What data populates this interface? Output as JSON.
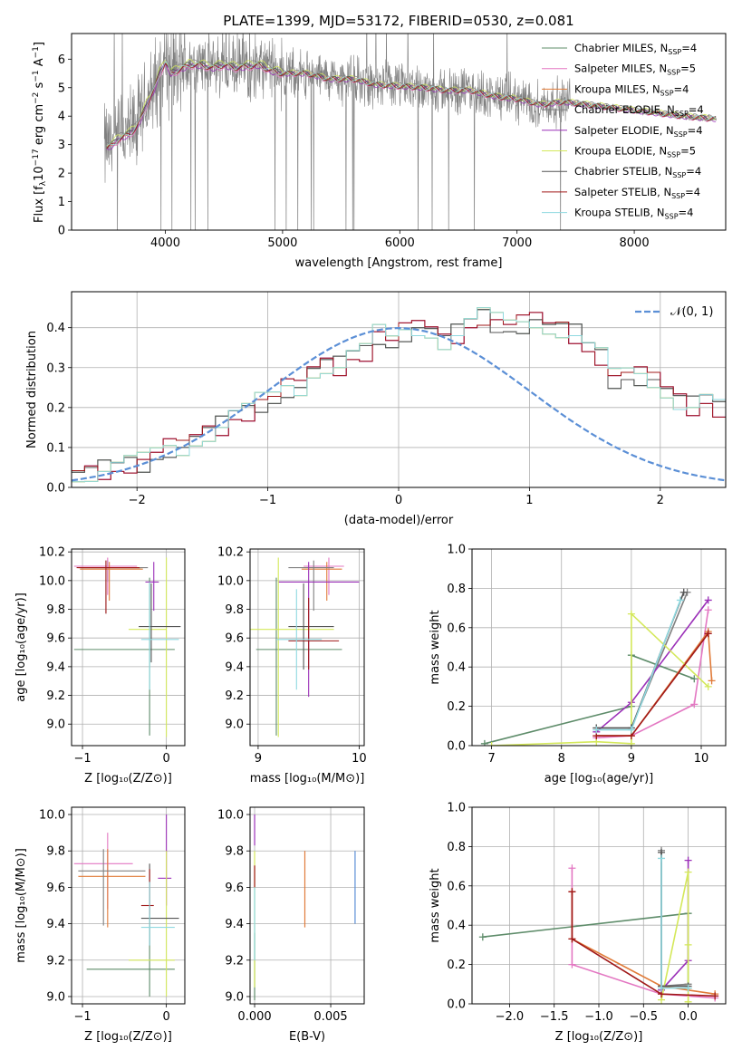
{
  "chart_data": [
    {
      "id": "spectrum",
      "type": "line",
      "title": "PLATE=1399, MJD=53172, FIBERID=0530, z=0.081",
      "xlabel": "wavelength [Angstrom, rest frame]",
      "ylabel": "Flux [fλ10^-17 erg cm^-2 s^-1 A^-1]",
      "xlim": [
        3200,
        8780
      ],
      "ylim": [
        0,
        6.9
      ],
      "xticks": [
        4000,
        5000,
        6000,
        7000,
        8000
      ],
      "yticks": [
        0,
        1,
        2,
        3,
        4,
        5,
        6
      ],
      "grid": false,
      "legend_position": "top-right",
      "legend": [
        {
          "name": "Chabrier MILES",
          "nssp": "4",
          "color": "#5e8c6a"
        },
        {
          "name": "Salpeter MILES",
          "nssp": "5",
          "color": "#e377c2"
        },
        {
          "name": "Kroupa MILES",
          "nssp": "4",
          "color": "#e07b39"
        },
        {
          "name": "Chabrier ELODIE",
          "nssp": "4",
          "color": "#808080"
        },
        {
          "name": "Salpeter ELODIE",
          "nssp": "4",
          "color": "#9b30b8"
        },
        {
          "name": "Kroupa ELODIE",
          "nssp": "5",
          "color": "#d4e85a"
        },
        {
          "name": "Chabrier STELIB",
          "nssp": "4",
          "color": "#555555"
        },
        {
          "name": "Salpeter STELIB",
          "nssp": "4",
          "color": "#a01818"
        },
        {
          "name": "Kroupa STELIB",
          "nssp": "4",
          "color": "#8fd9e0"
        }
      ],
      "data_color": "#808080",
      "model_color": "#6ccfd8",
      "model_curve": {
        "x": [
          3500,
          3550,
          3600,
          3650,
          3700,
          3750,
          3800,
          3850,
          3900,
          3950,
          4000,
          4050,
          4100,
          4200,
          4300,
          4400,
          4500,
          4600,
          4700,
          4800,
          4900,
          5000,
          5200,
          5400,
          5600,
          5800,
          6000,
          6200,
          6400,
          6600,
          6800,
          7000,
          7200,
          7400,
          7600,
          7800,
          8000,
          8200,
          8400,
          8700
        ],
        "y": [
          2.9,
          3.0,
          3.2,
          3.3,
          3.4,
          3.6,
          4.0,
          4.5,
          4.9,
          5.5,
          5.9,
          5.5,
          5.6,
          5.8,
          5.8,
          5.7,
          5.8,
          5.7,
          5.75,
          5.8,
          5.6,
          5.5,
          5.5,
          5.3,
          5.3,
          5.1,
          5.05,
          5.0,
          4.9,
          4.9,
          4.7,
          4.6,
          4.4,
          4.5,
          4.4,
          4.3,
          4.2,
          4.1,
          4.0,
          3.9
        ]
      }
    },
    {
      "id": "residuals",
      "type": "step",
      "xlabel": "(data-model)/error",
      "ylabel": "Normed distribution",
      "xlim": [
        -2.5,
        2.5
      ],
      "ylim": [
        0,
        0.49
      ],
      "xticks": [
        -2,
        -1,
        0,
        1,
        2
      ],
      "yticks": [
        0.0,
        0.1,
        0.2,
        0.3,
        0.4
      ],
      "grid": true,
      "legend_position": "top-right",
      "legend": [
        {
          "name": "𝒩(0, 1)",
          "color": "#5b8fd6"
        }
      ],
      "bin_width": 0.1,
      "base_hist": [
        0.02,
        0.03,
        0.03,
        0.04,
        0.05,
        0.06,
        0.07,
        0.08,
        0.09,
        0.1,
        0.12,
        0.13,
        0.15,
        0.18,
        0.19,
        0.22,
        0.22,
        0.24,
        0.25,
        0.29,
        0.3,
        0.3,
        0.33,
        0.34,
        0.39,
        0.36,
        0.38,
        0.4,
        0.39,
        0.36,
        0.38,
        0.41,
        0.43,
        0.42,
        0.4,
        0.4,
        0.42,
        0.4,
        0.39,
        0.38,
        0.35,
        0.33,
        0.28,
        0.28,
        0.27,
        0.27,
        0.24,
        0.21,
        0.2,
        0.22,
        0.2,
        0.16,
        0.17,
        0.14,
        0.13,
        0.12,
        0.1,
        0.09,
        0.1,
        0.09,
        0.08,
        0.07,
        0.06,
        0.06,
        0.05,
        0.05,
        0.04,
        0.03,
        0.03,
        0.03,
        0.02,
        0.02
      ],
      "bins_from": -2.6
    },
    {
      "id": "age_vs_Z",
      "type": "errorbar",
      "xlabel": "Z [log10(Z/Z⊙)]",
      "ylabel": "age  [log10(age/yr)]",
      "xlim": [
        -1.13,
        0.22
      ],
      "ylim": [
        8.85,
        10.22
      ],
      "xticks": [
        -1,
        0
      ],
      "yticks": [
        9.0,
        9.2,
        9.4,
        9.6,
        9.8,
        10.0,
        10.2
      ],
      "grid": true,
      "points": [
        {
          "c": 0,
          "x": -0.2,
          "y": 9.52,
          "xe": [
            0.9,
            0.3
          ],
          "ye": [
            0.6,
            0.5
          ]
        },
        {
          "c": 0,
          "x": -0.7,
          "y": 10.09,
          "xe": [
            0.35,
            0.4
          ],
          "ye": [
            0.1,
            0.05
          ]
        },
        {
          "c": 1,
          "x": -0.7,
          "y": 10.1,
          "xe": [
            0.4,
            0.35
          ],
          "ye": [
            0.2,
            0.06
          ]
        },
        {
          "c": 2,
          "x": -0.68,
          "y": 10.08,
          "xe": [
            0.35,
            0.4
          ],
          "ye": [
            0.22,
            0.05
          ]
        },
        {
          "c": 3,
          "x": -0.72,
          "y": 10.09,
          "xe": [
            0.3,
            0.5
          ],
          "ye": [
            0.32,
            0.05
          ]
        },
        {
          "c": 4,
          "x": -0.15,
          "y": 9.99,
          "xe": [
            0.1,
            0.06
          ],
          "ye": [
            0.2,
            0.14
          ]
        },
        {
          "c": 5,
          "x": 0.0,
          "y": 9.66,
          "xe": [
            0.45,
            0.0
          ],
          "ye": [
            0.75,
            0.5
          ]
        },
        {
          "c": 6,
          "x": -0.18,
          "y": 9.68,
          "xe": [
            0.15,
            0.35
          ],
          "ye": [
            0.25,
            0.3
          ]
        },
        {
          "c": 7,
          "x": -0.72,
          "y": 10.09,
          "xe": [
            0.35,
            0.4
          ],
          "ye": [
            0.32,
            0.05
          ]
        },
        {
          "c": 8,
          "x": -0.2,
          "y": 9.59,
          "xe": [
            0.1,
            0.35
          ],
          "ye": [
            0.35,
            0.4
          ]
        }
      ]
    },
    {
      "id": "age_vs_mass",
      "type": "errorbar",
      "xlabel": "mass [log10(M/M⊙)]",
      "ylabel": "",
      "xlim": [
        8.92,
        10.05
      ],
      "ylim": [
        8.85,
        10.22
      ],
      "xticks": [
        9,
        10
      ],
      "yticks": [
        9.0,
        9.2,
        9.4,
        9.6,
        9.8,
        10.0,
        10.2
      ],
      "grid": true,
      "points": [
        {
          "c": 0,
          "x": 9.18,
          "y": 9.52,
          "xe": [
            0.2,
            0.65
          ],
          "ye": [
            0.6,
            0.5
          ]
        },
        {
          "c": 1,
          "x": 9.7,
          "y": 10.1,
          "xe": [
            0.25,
            0.15
          ],
          "ye": [
            0.2,
            0.06
          ]
        },
        {
          "c": 2,
          "x": 9.68,
          "y": 10.08,
          "xe": [
            0.25,
            0.15
          ],
          "ye": [
            0.22,
            0.05
          ]
        },
        {
          "c": 3,
          "x": 9.55,
          "y": 10.09,
          "xe": [
            0.25,
            0.2
          ],
          "ye": [
            0.3,
            0.05
          ]
        },
        {
          "c": 4,
          "x": 9.5,
          "y": 9.99,
          "xe": [
            0.3,
            0.5
          ],
          "ye": [
            0.8,
            0.14
          ]
        },
        {
          "c": 5,
          "x": 9.2,
          "y": 9.66,
          "xe": [
            0.4,
            0.55
          ],
          "ye": [
            0.75,
            0.5
          ]
        },
        {
          "c": 6,
          "x": 9.45,
          "y": 9.68,
          "xe": [
            0.15,
            0.3
          ],
          "ye": [
            0.3,
            0.3
          ]
        },
        {
          "c": 7,
          "x": 9.5,
          "y": 9.58,
          "xe": [
            0.2,
            0.3
          ],
          "ye": [
            0.2,
            0.3
          ]
        },
        {
          "c": 8,
          "x": 9.38,
          "y": 9.59,
          "xe": [
            0.2,
            0.25
          ],
          "ye": [
            0.35,
            0.35
          ]
        }
      ]
    },
    {
      "id": "massweight_vs_age",
      "type": "line",
      "xlabel": "age  [log10(age/yr)]",
      "ylabel": "mass weight",
      "xlim": [
        6.72,
        10.35
      ],
      "ylim": [
        0,
        1.0
      ],
      "xticks": [
        7,
        8,
        9,
        10
      ],
      "yticks": [
        0.0,
        0.2,
        0.4,
        0.6,
        0.8,
        1.0
      ],
      "grid": true,
      "series": [
        {
          "c": 0,
          "x": [
            6.9,
            9.0,
            9.0,
            9.9
          ],
          "y": [
            0.01,
            0.2,
            0.46,
            0.34
          ]
        },
        {
          "c": 1,
          "x": [
            8.5,
            9.0,
            9.9,
            10.1
          ],
          "y": [
            0.04,
            0.05,
            0.21,
            0.69
          ]
        },
        {
          "c": 2,
          "x": [
            8.5,
            9.0,
            10.1,
            10.15
          ],
          "y": [
            0.05,
            0.05,
            0.58,
            0.33
          ]
        },
        {
          "c": 3,
          "x": [
            8.5,
            9.0,
            9.8
          ],
          "y": [
            0.09,
            0.09,
            0.78
          ]
        },
        {
          "c": 4,
          "x": [
            8.5,
            9.0,
            10.1
          ],
          "y": [
            0.07,
            0.22,
            0.74
          ]
        },
        {
          "c": 5,
          "x": [
            7.0,
            8.5,
            9.0,
            9.0,
            10.1
          ],
          "y": [
            0.0,
            0.02,
            0.01,
            0.67,
            0.3
          ]
        },
        {
          "c": 6,
          "x": [
            8.5,
            9.0,
            9.75
          ],
          "y": [
            0.09,
            0.09,
            0.78
          ]
        },
        {
          "c": 7,
          "x": [
            8.5,
            9.0,
            10.1
          ],
          "y": [
            0.05,
            0.05,
            0.57
          ]
        },
        {
          "c": 8,
          "x": [
            8.5,
            9.0,
            9.7
          ],
          "y": [
            0.08,
            0.08,
            0.74
          ]
        }
      ]
    },
    {
      "id": "mass_vs_Z",
      "type": "errorbar",
      "xlabel": "Z [log10(Z/Z⊙)]",
      "ylabel": "mass [log10(M/M⊙)]",
      "xlim": [
        -1.13,
        0.22
      ],
      "ylim": [
        8.96,
        10.04
      ],
      "xticks": [
        -1,
        0
      ],
      "yticks": [
        9.0,
        9.2,
        9.4,
        9.6,
        9.8,
        10.0
      ],
      "grid": true,
      "points": [
        {
          "c": 0,
          "x": -0.2,
          "y": 9.15,
          "xe": [
            0.75,
            0.3
          ],
          "ye": [
            0.15,
            0.3
          ]
        },
        {
          "c": 1,
          "x": -0.7,
          "y": 9.73,
          "xe": [
            0.4,
            0.3
          ],
          "ye": [
            0.25,
            0.17
          ]
        },
        {
          "c": 2,
          "x": -0.7,
          "y": 9.66,
          "xe": [
            0.35,
            0.45
          ],
          "ye": [
            0.28,
            0.15
          ]
        },
        {
          "c": 3,
          "x": -0.75,
          "y": 9.69,
          "xe": [
            0.3,
            0.5
          ],
          "ye": [
            0.3,
            0.12
          ]
        },
        {
          "c": 4,
          "x": 0.0,
          "y": 9.65,
          "xe": [
            0.1,
            0.06
          ],
          "ye": [
            0.15,
            0.35
          ]
        },
        {
          "c": 5,
          "x": 0.0,
          "y": 9.2,
          "xe": [
            0.45,
            0.1
          ],
          "ye": [
            0.2,
            0.6
          ]
        },
        {
          "c": 6,
          "x": -0.2,
          "y": 9.43,
          "xe": [
            0.1,
            0.35
          ],
          "ye": [
            0.15,
            0.3
          ]
        },
        {
          "c": 7,
          "x": -0.2,
          "y": 9.5,
          "xe": [
            0.1,
            0.05
          ],
          "ye": [
            0.05,
            0.2
          ]
        },
        {
          "c": 8,
          "x": -0.2,
          "y": 9.38,
          "xe": [
            0.1,
            0.3
          ],
          "ye": [
            0.1,
            0.25
          ]
        }
      ]
    },
    {
      "id": "mass_vs_ebv",
      "type": "errorbar",
      "xlabel": "E(B-V)",
      "ylabel": "",
      "xlim": [
        -0.0003,
        0.0072
      ],
      "ylim": [
        8.96,
        10.04
      ],
      "xticks": [
        0.0,
        0.005
      ],
      "xtick_labels": [
        "0.000",
        "0.005"
      ],
      "yticks": [
        9.0,
        9.2,
        9.4,
        9.6,
        9.8,
        10.0
      ],
      "grid": true,
      "vbars": [
        {
          "c": 0,
          "x": 0.0,
          "y": [
            8.98,
            9.35
          ]
        },
        {
          "c": 4,
          "x": 0.0,
          "y": [
            9.83,
            10.0
          ]
        },
        {
          "c": 5,
          "x": 0.0,
          "y": [
            9.05,
            9.8
          ]
        },
        {
          "c": 7,
          "x": 0.0,
          "y": [
            9.6,
            9.72
          ]
        },
        {
          "c": 8,
          "x": 0.0,
          "y": [
            9.2,
            9.6
          ]
        },
        {
          "c": 2,
          "x": 0.0033,
          "y": [
            9.38,
            9.8
          ]
        },
        {
          "c": 9,
          "x": 0.0066,
          "y": [
            9.4,
            9.8
          ]
        }
      ]
    },
    {
      "id": "massweight_vs_Z",
      "type": "line",
      "xlabel": "Z [log10(Z/Z⊙)]",
      "ylabel": "mass weight",
      "xlim": [
        -2.42,
        0.42
      ],
      "ylim": [
        0,
        1.0
      ],
      "xticks": [
        -2.0,
        -1.5,
        -1.0,
        -0.5,
        0.0
      ],
      "xtick_labels": [
        "−2.0",
        "−1.5",
        "−1.0",
        "−0.5",
        "0.0"
      ],
      "yticks": [
        0.0,
        0.2,
        0.4,
        0.6,
        0.8,
        1.0
      ],
      "grid": true,
      "series": [
        {
          "c": 0,
          "x": [
            -2.3,
            0.0,
            0.0
          ],
          "y": [
            0.34,
            0.46,
            0.08
          ]
        },
        {
          "c": 1,
          "x": [
            -1.3,
            -1.3,
            -0.3,
            0.3
          ],
          "y": [
            0.69,
            0.2,
            0.05,
            0.03
          ]
        },
        {
          "c": 2,
          "x": [
            -1.3,
            -1.3,
            -0.3,
            0.3
          ],
          "y": [
            0.57,
            0.33,
            0.09,
            0.05
          ]
        },
        {
          "c": 3,
          "x": [
            -0.3,
            -0.3,
            0.0
          ],
          "y": [
            0.78,
            0.09,
            0.1
          ]
        },
        {
          "c": 4,
          "x": [
            -0.3,
            0.0,
            0.0
          ],
          "y": [
            0.07,
            0.22,
            0.73
          ]
        },
        {
          "c": 5,
          "x": [
            -0.3,
            0.0,
            0.0,
            0.0
          ],
          "y": [
            0.02,
            0.67,
            0.3,
            0.01
          ]
        },
        {
          "c": 6,
          "x": [
            -0.3,
            -0.3,
            0.0
          ],
          "y": [
            0.77,
            0.09,
            0.09
          ]
        },
        {
          "c": 7,
          "x": [
            -1.3,
            -1.3,
            -0.3,
            0.3
          ],
          "y": [
            0.57,
            0.33,
            0.05,
            0.04
          ]
        },
        {
          "c": 8,
          "x": [
            -0.3,
            -0.3,
            0.0
          ],
          "y": [
            0.74,
            0.08,
            0.08
          ]
        }
      ]
    }
  ],
  "palette": [
    "#5e8c6a",
    "#e377c2",
    "#e07b39",
    "#808080",
    "#9b30b8",
    "#d4e85a",
    "#555555",
    "#a01818",
    "#8fd9e0",
    "#5b8fd6"
  ]
}
